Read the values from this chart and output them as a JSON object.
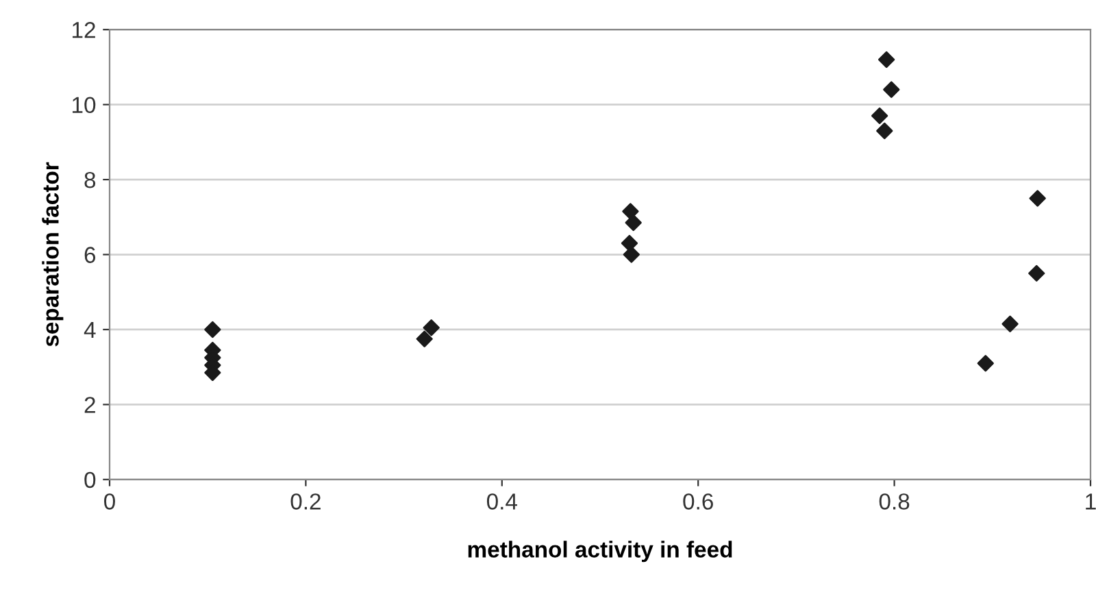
{
  "chart_data": {
    "type": "scatter",
    "xlabel": "methanol activity in feed",
    "ylabel": "separation factor",
    "series": [
      {
        "color": "#1a1a1a",
        "x": [
          0.105,
          0.105,
          0.105,
          0.105,
          0.105,
          0.321,
          0.325,
          0.328,
          0.531,
          0.534,
          0.53,
          0.532,
          0.785,
          0.79,
          0.792,
          0.797,
          0.893,
          0.918,
          0.945,
          0.946
        ],
        "values": [
          4.0,
          3.45,
          3.25,
          3.05,
          2.85,
          3.75,
          null,
          4.05,
          7.15,
          6.85,
          6.3,
          6.0,
          9.7,
          9.3,
          11.2,
          10.4,
          3.1,
          4.15,
          5.5,
          7.5
        ]
      }
    ],
    "xlim": [
      0,
      1
    ],
    "xticks": [
      0,
      0.2,
      0.4,
      0.6,
      0.8,
      1
    ],
    "ylim": [
      0,
      12
    ],
    "yticks": [
      0,
      2,
      4,
      6,
      8,
      10,
      12
    ],
    "grid": "y",
    "marker": "diamond",
    "legend": false
  }
}
